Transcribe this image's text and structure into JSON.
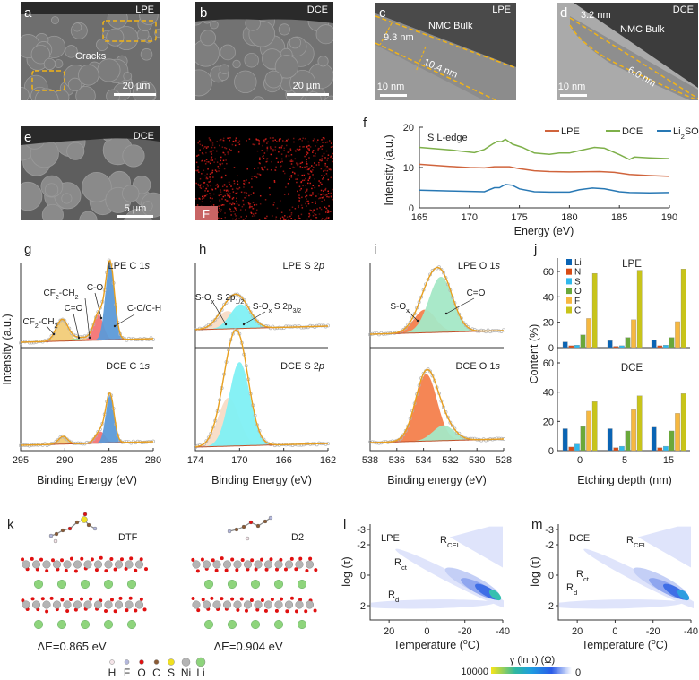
{
  "panels": {
    "a": {
      "letter": "a",
      "tag": "LPE",
      "annotation": "Cracks",
      "scale_bar": "20 µm"
    },
    "b": {
      "letter": "b",
      "tag": "DCE",
      "scale_bar": "20 µm"
    },
    "c": {
      "letter": "c",
      "tag": "LPE",
      "region": "NMC Bulk",
      "thickness_1": "9.3 nm",
      "thickness_2": "10.4 nm",
      "scale_bar": "10 nm"
    },
    "d": {
      "letter": "d",
      "tag": "DCE",
      "region": "NMC Bulk",
      "thickness_1": "3.2 nm",
      "thickness_2": "6.0 nm",
      "scale_bar": "10 nm"
    },
    "e": {
      "letter": "e",
      "tag": "DCE",
      "scale_bar": "5 µm"
    },
    "e_map": {
      "element": "F",
      "map_color": "#e0201c"
    },
    "k": {
      "letter": "k",
      "molecule_1": "DTF",
      "energy_1": "ΔE=0.865 eV",
      "molecule_2": "D2",
      "energy_2": "ΔE=0.904 eV",
      "atom_legend": [
        {
          "symbol": "H",
          "color": "#f4e4e8"
        },
        {
          "symbol": "F",
          "color": "#b4b8dc"
        },
        {
          "symbol": "O",
          "color": "#e01010"
        },
        {
          "symbol": "C",
          "color": "#8a5a34"
        },
        {
          "symbol": "S",
          "color": "#f0e020"
        },
        {
          "symbol": "Ni",
          "color": "#b4b4b4"
        },
        {
          "symbol": "Li",
          "color": "#8ed47c"
        }
      ]
    },
    "l": {
      "letter": "l",
      "tag": "LPE"
    },
    "m": {
      "letter": "m",
      "tag": "DCE"
    },
    "drt": {
      "labels": {
        "r_cei": "R_{CEI}",
        "r_ct": "R_{ct}",
        "r_d": "R_{d}"
      },
      "xlabel": "Temperature (^{o}C)",
      "ylabel": "log (τ)",
      "xticks": [
        "20",
        "0",
        "-20",
        "-40"
      ],
      "yticks": [
        "-3",
        "-2",
        "0",
        "2"
      ],
      "colorbar": {
        "title": "γ (ln τ) (Ω)",
        "max": "10000",
        "min": "0",
        "colors": [
          "#f7e51a",
          "#2fb8a0",
          "#1e9de0",
          "#2a5be8",
          "#ffffff"
        ]
      }
    }
  },
  "chart_data": [
    {
      "id": "f",
      "letter": "f",
      "type": "line",
      "annotation": "S L-edge",
      "xlabel": "Energy (eV)",
      "ylabel": "Intensity (a.u.)",
      "xlim": [
        165,
        190
      ],
      "ylim": [
        0,
        20
      ],
      "xticks": [
        "165",
        "170",
        "175",
        "180",
        "185",
        "190"
      ],
      "yticks": [
        "0",
        "10",
        "20"
      ],
      "legend_position": "top-right",
      "series": [
        {
          "name": "LPE",
          "color": "#d0643c",
          "x": [
            165,
            168,
            170,
            171.5,
            172.5,
            174,
            175,
            176.5,
            178,
            180,
            183,
            184.5,
            186,
            188,
            190
          ],
          "y": [
            10.8,
            10.3,
            10,
            9.9,
            10.2,
            10.2,
            9.7,
            9.2,
            9,
            8.9,
            9,
            8.8,
            8.3,
            8,
            7.8
          ]
        },
        {
          "name": "DCE",
          "color": "#7eb04a",
          "x": [
            165,
            168,
            170.5,
            171.5,
            172.3,
            172.8,
            173.2,
            173.6,
            174.3,
            175.3,
            176.5,
            178,
            179,
            180,
            181,
            182.5,
            183.5,
            185,
            186,
            186.5,
            188,
            190
          ],
          "y": [
            15,
            14.4,
            13.7,
            14.5,
            15.8,
            16.5,
            16.4,
            17,
            15.8,
            15,
            13.6,
            13.3,
            13.6,
            13.6,
            14.2,
            15,
            14.8,
            13.2,
            12,
            12.6,
            12.4,
            12.2
          ]
        },
        {
          "name": "Li_{2}SO_{4}",
          "color": "#2878b4",
          "x": [
            165,
            168,
            171.5,
            172.5,
            173,
            173.6,
            174.3,
            175,
            176.5,
            178,
            180,
            181,
            182.3,
            183.5,
            185,
            186,
            188,
            190
          ],
          "y": [
            4.4,
            4.2,
            4,
            5,
            5,
            5.8,
            5.6,
            4.7,
            4,
            3.9,
            3.9,
            4.5,
            4.9,
            4.7,
            4,
            3.8,
            3.7,
            3.8
          ]
        }
      ]
    },
    {
      "id": "g",
      "letter": "g",
      "type": "area",
      "xlabel": "Binding Energy (eV)",
      "ylabel": "Intensity (a.u.)",
      "xlim": [
        295,
        280
      ],
      "xticks": [
        "295",
        "290",
        "285",
        "280"
      ],
      "envelope_color": "#e8a020",
      "raw_color": "#b4b4b4",
      "background_color": "#c0502a",
      "subplots": [
        {
          "title": "LPE  C 1^{s}",
          "peaks": [
            {
              "label": "CF_{2}-CH_{2}",
              "center": 290.3,
              "height": 0.28,
              "fwhm": 1.6,
              "color": "#f2cc78"
            },
            {
              "label": "C=O",
              "center": 288.7,
              "height": 0.03,
              "fwhm": 1.4,
              "color": "#9ad890"
            },
            {
              "label": "CF_{2}-CH_{2}",
              "center": 287.6,
              "height": 0.03,
              "fwhm": 1.4,
              "color": "#f4b46c"
            },
            {
              "label": "C-O",
              "center": 286.2,
              "height": 0.33,
              "fwhm": 1.3,
              "color": "#f47474"
            },
            {
              "label": "C-C/C-H",
              "center": 284.9,
              "height": 1.0,
              "fwhm": 1.2,
              "color": "#5c9ad8"
            }
          ]
        },
        {
          "title": "DCE  C 1^{s}",
          "peaks": [
            {
              "center": 290.2,
              "height": 0.1,
              "fwhm": 1.2,
              "color": "#f2cc78"
            },
            {
              "center": 286.0,
              "height": 0.15,
              "fwhm": 1.3,
              "color": "#f47474"
            },
            {
              "center": 284.9,
              "height": 0.62,
              "fwhm": 1.1,
              "color": "#5c9ad8"
            }
          ]
        }
      ]
    },
    {
      "id": "h",
      "letter": "h",
      "type": "area",
      "xlabel": "Binding Energy (eV)",
      "xlim": [
        174,
        162
      ],
      "xticks": [
        "174",
        "170",
        "166",
        "162"
      ],
      "envelope_color": "#e8a020",
      "raw_color": "#b4b4b4",
      "background_color": "#c0502a",
      "subplots": [
        {
          "title": "LPE  S 2^{p}",
          "peaks": [
            {
              "label": "S-O_{x} S 2p_{1/2}",
              "center": 171.1,
              "height": 0.22,
              "fwhm": 2.2,
              "color": "#f8dcc6"
            },
            {
              "label": "S-O_{x} S 2p_{3/2}",
              "center": 169.9,
              "height": 0.3,
              "fwhm": 2.2,
              "color": "#80f0f4"
            }
          ]
        },
        {
          "title": "DCE  S 2^{p}",
          "peaks": [
            {
              "center": 171.0,
              "height": 0.45,
              "fwhm": 2.2,
              "color": "#f8dcc6"
            },
            {
              "center": 170.0,
              "height": 0.78,
              "fwhm": 2.2,
              "color": "#80f0f4"
            }
          ]
        }
      ]
    },
    {
      "id": "i",
      "letter": "i",
      "type": "area",
      "xlabel": "Binding energy (eV)",
      "xlim": [
        538,
        528
      ],
      "xticks": [
        "538",
        "536",
        "534",
        "532",
        "530",
        "528"
      ],
      "envelope_color": "#e8a020",
      "raw_color": "#b4b4b4",
      "background_color": "#c0502a",
      "subplots": [
        {
          "title": "LPE  O 1^{s}",
          "peaks": [
            {
              "label": "S-O_{x}",
              "center": 533.9,
              "height": 0.3,
              "fwhm": 1.9,
              "color": "#f4804c"
            },
            {
              "label": "C=O",
              "center": 532.7,
              "height": 0.72,
              "fwhm": 2.1,
              "color": "#a4e8c6"
            }
          ]
        },
        {
          "title": "DCE  O 1^{s}",
          "peaks": [
            {
              "center": 533.8,
              "height": 0.88,
              "fwhm": 1.9,
              "color": "#f4804c"
            },
            {
              "center": 532.5,
              "height": 0.2,
              "fwhm": 1.9,
              "color": "#a4e8c6"
            }
          ]
        }
      ]
    },
    {
      "id": "j",
      "letter": "j",
      "type": "bar",
      "xlabel": "Etching depth (nm)",
      "ylabel": "Content (%)",
      "categories": [
        "0",
        "5",
        "15"
      ],
      "yticks": [
        "0",
        "20",
        "40",
        "60"
      ],
      "ylim": [
        0,
        70
      ],
      "legend_position": "top-left",
      "legend": [
        {
          "name": "Li",
          "color": "#0a64b4"
        },
        {
          "name": "N",
          "color": "#d84c14"
        },
        {
          "name": "S",
          "color": "#30b8ec"
        },
        {
          "name": "O",
          "color": "#6aa83a"
        },
        {
          "name": "F",
          "color": "#f6b840"
        },
        {
          "name": "C",
          "color": "#c8c41a"
        }
      ],
      "subplots": [
        {
          "title": "LPE",
          "series": [
            {
              "name": "Li",
              "values": [
                4.5,
                5.5,
                6
              ]
            },
            {
              "name": "N",
              "values": [
                1.5,
                1,
                1.5
              ]
            },
            {
              "name": "S",
              "values": [
                2,
                1.5,
                2
              ]
            },
            {
              "name": "O",
              "values": [
                10,
                8,
                8
              ]
            },
            {
              "name": "F",
              "values": [
                23,
                22,
                20.5
              ]
            },
            {
              "name": "C",
              "values": [
                58.5,
                61,
                62
              ]
            }
          ]
        },
        {
          "title": "DCE",
          "series": [
            {
              "name": "Li",
              "values": [
                15,
                15,
                16
              ]
            },
            {
              "name": "N",
              "values": [
                2.5,
                2,
                2
              ]
            },
            {
              "name": "S",
              "values": [
                4.5,
                3,
                3
              ]
            },
            {
              "name": "O",
              "values": [
                16.5,
                13.5,
                13.5
              ]
            },
            {
              "name": "F",
              "values": [
                27,
                28,
                25.5
              ]
            },
            {
              "name": "C",
              "values": [
                33.5,
                37.5,
                39
              ]
            }
          ]
        }
      ]
    }
  ]
}
